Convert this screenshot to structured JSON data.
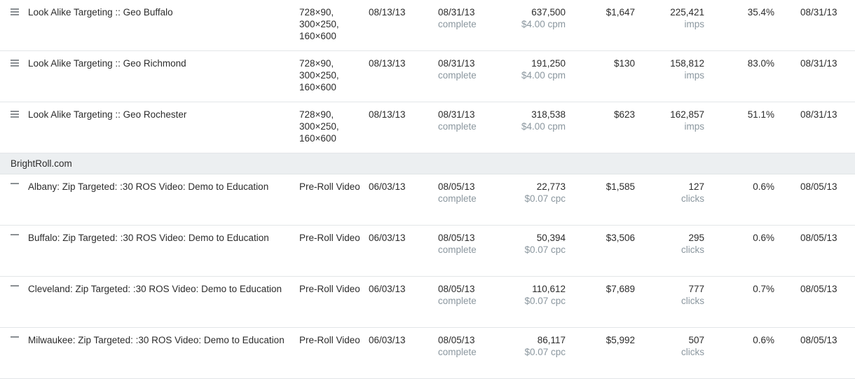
{
  "sections": [
    {
      "label": "",
      "icon": "drag-handle-icon",
      "rows": [
        {
          "name": "Look Alike Targeting :: Geo Buffalo",
          "size": [
            "728×90,",
            "300×250,",
            "160×600"
          ],
          "start": "08/13/13",
          "end": "08/31/13",
          "status": "complete",
          "booked": "637,500",
          "rate": "$4.00 cpm",
          "cost": "$1,647",
          "delivered": "225,421",
          "unit": "imps",
          "pct": "35.4%",
          "last": "08/31/13"
        },
        {
          "name": "Look Alike Targeting :: Geo Richmond",
          "size": [
            "728×90,",
            "300×250,",
            "160×600"
          ],
          "start": "08/13/13",
          "end": "08/31/13",
          "status": "complete",
          "booked": "191,250",
          "rate": "$4.00 cpm",
          "cost": "$130",
          "delivered": "158,812",
          "unit": "imps",
          "pct": "83.0%",
          "last": "08/31/13"
        },
        {
          "name": "Look Alike Targeting :: Geo Rochester",
          "size": [
            "728×90,",
            "300×250,",
            "160×600"
          ],
          "start": "08/13/13",
          "end": "08/31/13",
          "status": "complete",
          "booked": "318,538",
          "rate": "$4.00 cpm",
          "cost": "$623",
          "delivered": "162,857",
          "unit": "imps",
          "pct": "51.1%",
          "last": "08/31/13"
        }
      ]
    },
    {
      "label": "BrightRoll.com",
      "icon": "minus-icon",
      "rows": [
        {
          "name": "Albany: Zip Targeted: :30 ROS Video: Demo to Education",
          "size": [
            "Pre-Roll Video"
          ],
          "start": "06/03/13",
          "end": "08/05/13",
          "status": "complete",
          "booked": "22,773",
          "rate": "$0.07 cpc",
          "cost": "$1,585",
          "delivered": "127",
          "unit": "clicks",
          "pct": "0.6%",
          "last": "08/05/13"
        },
        {
          "name": "Buffalo: Zip Targeted: :30 ROS Video: Demo to Education",
          "size": [
            "Pre-Roll Video"
          ],
          "start": "06/03/13",
          "end": "08/05/13",
          "status": "complete",
          "booked": "50,394",
          "rate": "$0.07 cpc",
          "cost": "$3,506",
          "delivered": "295",
          "unit": "clicks",
          "pct": "0.6%",
          "last": "08/05/13"
        },
        {
          "name": "Cleveland: Zip Targeted: :30 ROS Video: Demo to Education",
          "size": [
            "Pre-Roll Video"
          ],
          "start": "06/03/13",
          "end": "08/05/13",
          "status": "complete",
          "booked": "110,612",
          "rate": "$0.07 cpc",
          "cost": "$7,689",
          "delivered": "777",
          "unit": "clicks",
          "pct": "0.7%",
          "last": "08/05/13"
        },
        {
          "name": "Milwaukee: Zip Targeted: :30 ROS Video: Demo to Education",
          "size": [
            "Pre-Roll Video"
          ],
          "start": "06/03/13",
          "end": "08/05/13",
          "status": "complete",
          "booked": "86,117",
          "rate": "$0.07 cpc",
          "cost": "$5,992",
          "delivered": "507",
          "unit": "clicks",
          "pct": "0.6%",
          "last": "08/05/13"
        }
      ]
    }
  ]
}
